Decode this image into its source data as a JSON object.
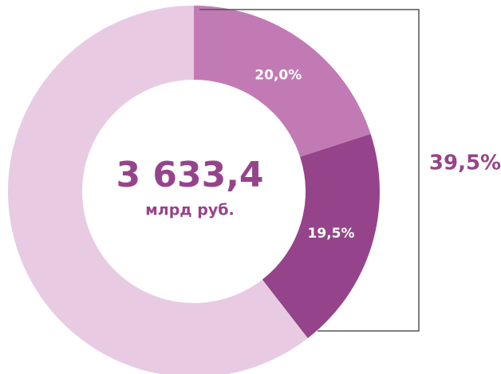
{
  "chart_data": {
    "type": "donut",
    "values": [
      20.0,
      19.5,
      60.5
    ],
    "value_labels": [
      "20,0%",
      "19,5%",
      null
    ],
    "colors": [
      "#c27ab5",
      "#95448b",
      "#e8cbe2"
    ],
    "center_value": "3 633,4",
    "center_label": "млрд руб.",
    "annotation": "39,5%"
  }
}
